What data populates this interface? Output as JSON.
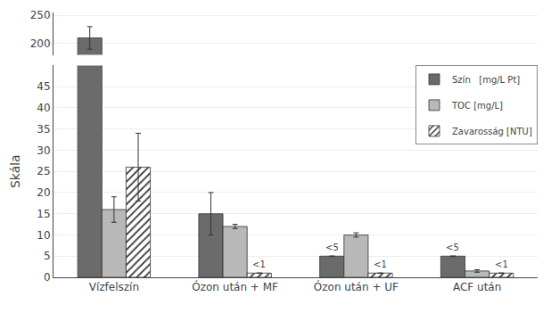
{
  "chart_data": {
    "type": "bar",
    "categories": [
      "Vízfelszín",
      "Ózon után + MF",
      "Ózon után + UF",
      "ACF után"
    ],
    "series": [
      {
        "name": "Szín   [mg/L Pt]",
        "color": "#6b6b6b",
        "values": [
          210,
          15,
          5,
          5
        ],
        "errors": [
          20,
          5,
          0,
          0
        ]
      },
      {
        "name": "TOC [mg/L]",
        "color": "#b8b8b8",
        "values": [
          16,
          12,
          10,
          1.5
        ],
        "errors": [
          3,
          0.5,
          0.5,
          0.3
        ]
      },
      {
        "name": "Zavarosság [NTU]",
        "color": "#ffffff",
        "values": [
          26,
          1,
          1,
          1
        ],
        "errors": [
          8,
          0,
          0,
          0
        ]
      }
    ],
    "ylabel": "Skála",
    "ylim": [
      [
        0,
        50
      ],
      [
        180,
        255
      ]
    ],
    "yticks": [
      [
        0,
        5,
        10,
        15,
        20,
        25,
        30,
        35,
        40,
        45
      ],
      [
        200,
        250
      ]
    ],
    "grid": true,
    "legend": "upper right",
    "annotations": [
      {
        "category": "Ózon után + MF",
        "series": "Zavarosság [NTU]",
        "text": "<1"
      },
      {
        "category": "Ózon után + UF",
        "series": "Szín   [mg/L Pt]",
        "text": "<5"
      },
      {
        "category": "Ózon után + UF",
        "series": "Zavarosság [NTU]",
        "text": "<1"
      },
      {
        "category": "ACF után",
        "series": "Szín   [mg/L Pt]",
        "text": "<5"
      },
      {
        "category": "ACF után",
        "series": "Zavarosság [NTU]",
        "text": "<1"
      }
    ]
  }
}
